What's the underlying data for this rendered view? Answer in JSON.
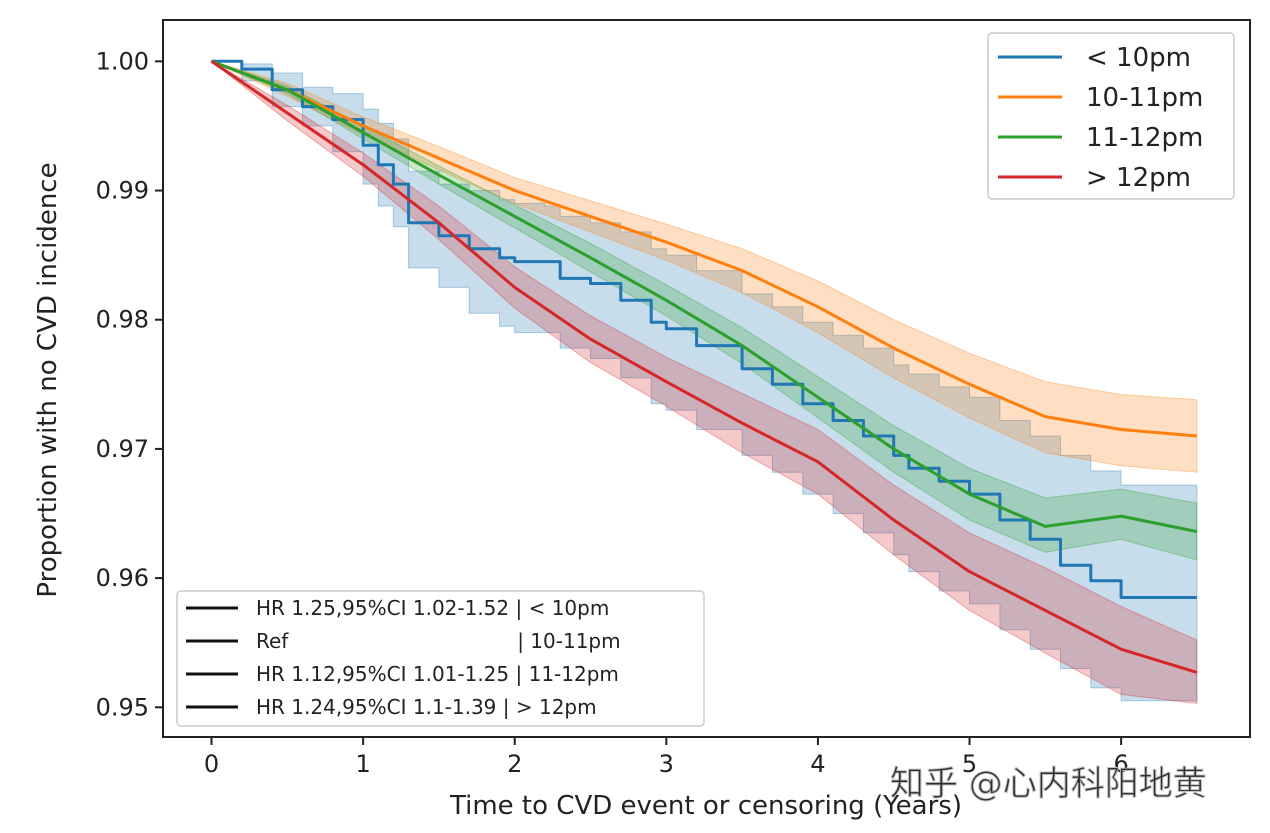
{
  "chart_data": {
    "type": "line",
    "xlabel": "Time to CVD event or censoring (Years)",
    "ylabel": "Proportion with no CVD incidence",
    "xlim": [
      -0.32,
      6.85
    ],
    "ylim": [
      0.9477,
      1.0032
    ],
    "x_ticks": [
      0,
      1,
      2,
      3,
      4,
      5,
      6
    ],
    "x_tick_labels": [
      "0",
      "1",
      "2",
      "3",
      "4",
      "5",
      "6"
    ],
    "y_ticks": [
      0.95,
      0.96,
      0.97,
      0.98,
      0.99,
      1.0
    ],
    "y_tick_labels": [
      "0.95",
      "0.96",
      "0.97",
      "0.98",
      "0.99",
      "1.00"
    ],
    "grid": false,
    "legend_position": "top-right",
    "series": [
      {
        "name": "< 10pm",
        "color": "#1f77b4",
        "step": true,
        "x": [
          0,
          0.2,
          0.4,
          0.6,
          0.8,
          1.0,
          1.1,
          1.2,
          1.3,
          1.5,
          1.7,
          1.9,
          2.0,
          2.2,
          2.3,
          2.5,
          2.7,
          2.9,
          3.0,
          3.2,
          3.5,
          3.7,
          3.9,
          4.1,
          4.3,
          4.5,
          4.6,
          4.8,
          5.0,
          5.2,
          5.4,
          5.6,
          5.8,
          6.0,
          6.5
        ],
        "y": [
          1.0,
          0.9994,
          0.9978,
          0.9965,
          0.9955,
          0.9935,
          0.992,
          0.9905,
          0.9875,
          0.9865,
          0.9855,
          0.9848,
          0.9845,
          0.9845,
          0.9832,
          0.9828,
          0.9815,
          0.9798,
          0.9793,
          0.978,
          0.9762,
          0.975,
          0.9735,
          0.9722,
          0.971,
          0.9695,
          0.9685,
          0.9675,
          0.9665,
          0.9645,
          0.963,
          0.961,
          0.9598,
          0.9585,
          0.9585
        ],
        "ci_lower": [
          1.0,
          0.9985,
          0.9965,
          0.995,
          0.993,
          0.9905,
          0.9888,
          0.9872,
          0.984,
          0.9825,
          0.9805,
          0.9795,
          0.979,
          0.979,
          0.9778,
          0.977,
          0.9755,
          0.9735,
          0.973,
          0.9715,
          0.9695,
          0.9682,
          0.9665,
          0.965,
          0.9635,
          0.9618,
          0.9605,
          0.959,
          0.958,
          0.956,
          0.9545,
          0.953,
          0.9515,
          0.9505,
          0.9505
        ],
        "ci_upper": [
          1.0,
          0.9998,
          0.9991,
          0.998,
          0.9975,
          0.9963,
          0.9952,
          0.994,
          0.9915,
          0.9905,
          0.99,
          0.9893,
          0.989,
          0.9888,
          0.988,
          0.9875,
          0.9868,
          0.9855,
          0.985,
          0.9838,
          0.982,
          0.981,
          0.9798,
          0.9788,
          0.9778,
          0.9765,
          0.9758,
          0.9748,
          0.974,
          0.9722,
          0.971,
          0.9695,
          0.9683,
          0.9672,
          0.9672
        ]
      },
      {
        "name": "10-11pm",
        "color": "#ff7f0e",
        "step": false,
        "x": [
          0,
          0.5,
          1.0,
          1.5,
          2.0,
          2.5,
          3.0,
          3.5,
          4.0,
          4.5,
          5.0,
          5.5,
          6.0,
          6.5
        ],
        "y": [
          1.0,
          0.9978,
          0.995,
          0.9925,
          0.99,
          0.988,
          0.986,
          0.9838,
          0.981,
          0.9778,
          0.975,
          0.9725,
          0.9715,
          0.971
        ],
        "ci_lower": [
          1.0,
          0.9973,
          0.9943,
          0.9916,
          0.989,
          0.9868,
          0.9846,
          0.9821,
          0.979,
          0.9755,
          0.9724,
          0.9697,
          0.9687,
          0.9682
        ],
        "ci_upper": [
          1.0,
          0.9983,
          0.9957,
          0.9934,
          0.991,
          0.9892,
          0.9874,
          0.9855,
          0.983,
          0.98,
          0.9774,
          0.9752,
          0.9742,
          0.9738
        ]
      },
      {
        "name": "11-12pm",
        "color": "#2ca02c",
        "step": false,
        "x": [
          0,
          0.5,
          1.0,
          1.5,
          2.0,
          2.5,
          3.0,
          3.5,
          4.0,
          4.5,
          5.0,
          5.5,
          6.0,
          6.5
        ],
        "y": [
          1.0,
          0.9978,
          0.9945,
          0.9912,
          0.988,
          0.9848,
          0.9815,
          0.978,
          0.974,
          0.97,
          0.9665,
          0.964,
          0.9648,
          0.9636
        ],
        "ci_lower": [
          1.0,
          0.9975,
          0.994,
          0.9905,
          0.9871,
          0.9837,
          0.9803,
          0.9766,
          0.9724,
          0.9682,
          0.9645,
          0.962,
          0.963,
          0.9614
        ],
        "ci_upper": [
          1.0,
          0.9981,
          0.995,
          0.9919,
          0.9889,
          0.9859,
          0.9827,
          0.9794,
          0.9756,
          0.9718,
          0.9685,
          0.9662,
          0.9669,
          0.9658
        ]
      },
      {
        "name": "> 12pm",
        "color": "#d62728",
        "step": false,
        "x": [
          0,
          0.5,
          1.0,
          1.5,
          2.0,
          2.5,
          3.0,
          3.5,
          4.0,
          4.5,
          5.0,
          5.5,
          6.0,
          6.5
        ],
        "y": [
          1.0,
          0.996,
          0.992,
          0.9875,
          0.9825,
          0.9785,
          0.9752,
          0.972,
          0.969,
          0.9645,
          0.9605,
          0.9575,
          0.9545,
          0.9527
        ],
        "ci_lower": [
          1.0,
          0.9954,
          0.9911,
          0.9862,
          0.9809,
          0.9767,
          0.9733,
          0.9697,
          0.9665,
          0.9618,
          0.9575,
          0.9542,
          0.951,
          0.9503
        ],
        "ci_upper": [
          1.0,
          0.9966,
          0.9929,
          0.9888,
          0.9841,
          0.9803,
          0.9771,
          0.9743,
          0.9715,
          0.9672,
          0.9635,
          0.9608,
          0.9578,
          0.9552
        ]
      }
    ],
    "annotations": [
      {
        "text": "HR 1.25,95%CI 1.02-1.52 | < 10pm"
      },
      {
        "text": "Ref                                    | 10-11pm"
      },
      {
        "text": "HR 1.12,95%CI 1.01-1.25 | 11-12pm"
      },
      {
        "text": "HR 1.24,95%CI 1.1-1.39 | > 12pm"
      }
    ],
    "watermark": "知乎 @心内科阳地黄"
  }
}
